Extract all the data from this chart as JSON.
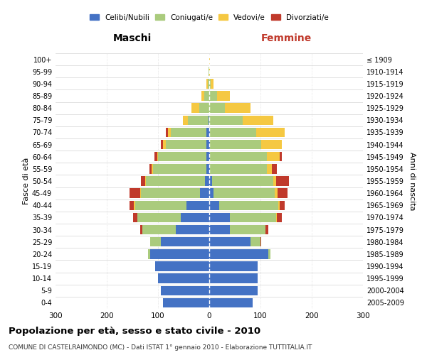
{
  "age_groups": [
    "0-4",
    "5-9",
    "10-14",
    "15-19",
    "20-24",
    "25-29",
    "30-34",
    "35-39",
    "40-44",
    "45-49",
    "50-54",
    "55-59",
    "60-64",
    "65-69",
    "70-74",
    "75-79",
    "80-84",
    "85-89",
    "90-94",
    "95-99",
    "100+"
  ],
  "birth_years": [
    "2005-2009",
    "2000-2004",
    "1995-1999",
    "1990-1994",
    "1985-1989",
    "1980-1984",
    "1975-1979",
    "1970-1974",
    "1965-1969",
    "1960-1964",
    "1955-1959",
    "1950-1954",
    "1945-1949",
    "1940-1944",
    "1935-1939",
    "1930-1934",
    "1925-1929",
    "1920-1924",
    "1915-1919",
    "1910-1914",
    "≤ 1909"
  ],
  "maschi": {
    "celibi": [
      90,
      95,
      100,
      105,
      115,
      95,
      65,
      55,
      45,
      18,
      8,
      5,
      5,
      5,
      5,
      2,
      0,
      0,
      0,
      0,
      0
    ],
    "coniugati": [
      0,
      0,
      0,
      0,
      5,
      20,
      65,
      85,
      100,
      115,
      115,
      105,
      95,
      80,
      70,
      40,
      20,
      10,
      3,
      1,
      0
    ],
    "vedovi": [
      0,
      0,
      0,
      0,
      0,
      0,
      0,
      0,
      2,
      2,
      2,
      2,
      2,
      5,
      5,
      10,
      15,
      5,
      2,
      0,
      0
    ],
    "divorziati": [
      0,
      0,
      0,
      0,
      0,
      0,
      5,
      8,
      8,
      20,
      8,
      5,
      5,
      5,
      5,
      0,
      0,
      0,
      0,
      0,
      0
    ]
  },
  "femmine": {
    "nubili": [
      85,
      95,
      95,
      95,
      115,
      80,
      40,
      40,
      20,
      8,
      5,
      2,
      2,
      2,
      2,
      0,
      0,
      0,
      0,
      0,
      0
    ],
    "coniugate": [
      0,
      0,
      0,
      0,
      5,
      20,
      70,
      90,
      115,
      120,
      120,
      110,
      110,
      100,
      90,
      65,
      30,
      15,
      3,
      0,
      0
    ],
    "vedove": [
      0,
      0,
      0,
      0,
      0,
      0,
      0,
      2,
      2,
      5,
      5,
      10,
      25,
      40,
      55,
      60,
      50,
      25,
      5,
      2,
      2
    ],
    "divorziate": [
      0,
      0,
      0,
      0,
      0,
      2,
      5,
      10,
      10,
      20,
      25,
      10,
      5,
      0,
      0,
      0,
      0,
      0,
      0,
      0,
      0
    ]
  },
  "colors": {
    "celibi": "#4472C4",
    "coniugati": "#AACB7D",
    "vedovi": "#F5C842",
    "divorziati": "#C0392B"
  },
  "xlim": 300,
  "title": "Popolazione per età, sesso e stato civile - 2010",
  "subtitle": "COMUNE DI CASTELRAIMONDO (MC) - Dati ISTAT 1° gennaio 2010 - Elaborazione TUTTITALIA.IT",
  "xlabel_left": "Maschi",
  "xlabel_right": "Femmine",
  "ylabel_left": "Fasce di età",
  "ylabel_right": "Anni di nascita",
  "legend_labels": [
    "Celibi/Nubili",
    "Coniugati/e",
    "Vedovi/e",
    "Divorziati/e"
  ]
}
